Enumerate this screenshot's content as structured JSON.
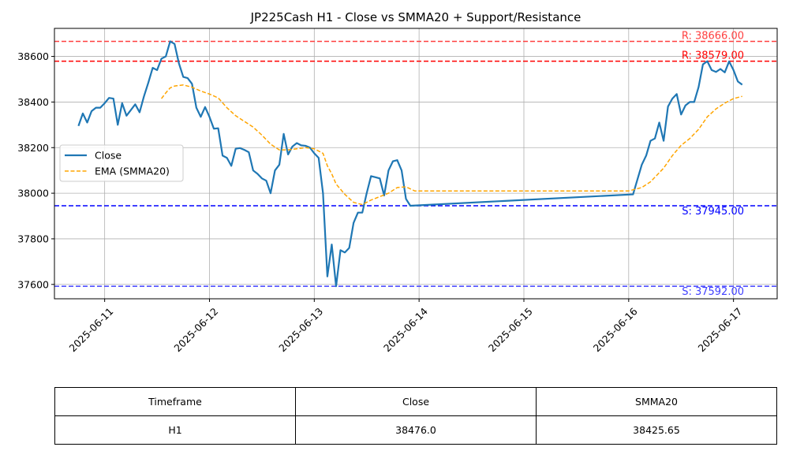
{
  "chart_data": {
    "type": "line",
    "title": "JP225Cash H1 - Close vs SMMA20 + Support/Resistance",
    "xlabel": "",
    "ylabel": "",
    "x_ticks": [
      "2025-06-11",
      "2025-06-12",
      "2025-06-13",
      "2025-06-14",
      "2025-06-15",
      "2025-06-16",
      "2025-06-17"
    ],
    "y_ticks": [
      37600,
      37800,
      38000,
      38200,
      38400,
      38600
    ],
    "xlim": [
      "2025-06-10T12:30",
      "2025-06-17T10:00"
    ],
    "ylim": [
      37537,
      38723
    ],
    "grid": true,
    "legend_position": "center-left",
    "series": [
      {
        "name": "Close",
        "color": "#1f77b4",
        "style": "solid",
        "points": [
          [
            "2025-06-10T18:00",
            38295
          ],
          [
            "2025-06-10T19:00",
            38350
          ],
          [
            "2025-06-10T20:00",
            38310
          ],
          [
            "2025-06-10T21:00",
            38360
          ],
          [
            "2025-06-10T22:00",
            38375
          ],
          [
            "2025-06-10T23:00",
            38375
          ],
          [
            "2025-06-11T00:00",
            38395
          ],
          [
            "2025-06-11T01:00",
            38418
          ],
          [
            "2025-06-11T02:00",
            38415
          ],
          [
            "2025-06-11T03:00",
            38300
          ],
          [
            "2025-06-11T04:00",
            38395
          ],
          [
            "2025-06-11T05:00",
            38340
          ],
          [
            "2025-06-11T06:00",
            38365
          ],
          [
            "2025-06-11T07:00",
            38390
          ],
          [
            "2025-06-11T08:00",
            38355
          ],
          [
            "2025-06-11T09:00",
            38425
          ],
          [
            "2025-06-11T10:00",
            38485
          ],
          [
            "2025-06-11T11:00",
            38550
          ],
          [
            "2025-06-11T12:00",
            38540
          ],
          [
            "2025-06-11T13:00",
            38590
          ],
          [
            "2025-06-11T14:00",
            38600
          ],
          [
            "2025-06-11T15:00",
            38666
          ],
          [
            "2025-06-11T16:00",
            38655
          ],
          [
            "2025-06-11T17:00",
            38570
          ],
          [
            "2025-06-11T18:00",
            38510
          ],
          [
            "2025-06-11T19:00",
            38505
          ],
          [
            "2025-06-11T20:00",
            38480
          ],
          [
            "2025-06-11T21:00",
            38375
          ],
          [
            "2025-06-11T22:00",
            38335
          ],
          [
            "2025-06-11T23:00",
            38378
          ],
          [
            "2025-06-12T00:00",
            38335
          ],
          [
            "2025-06-12T01:00",
            38283
          ],
          [
            "2025-06-12T02:00",
            38285
          ],
          [
            "2025-06-12T03:00",
            38165
          ],
          [
            "2025-06-12T04:00",
            38155
          ],
          [
            "2025-06-12T05:00",
            38120
          ],
          [
            "2025-06-12T06:00",
            38195
          ],
          [
            "2025-06-12T07:00",
            38198
          ],
          [
            "2025-06-12T08:00",
            38190
          ],
          [
            "2025-06-12T09:00",
            38180
          ],
          [
            "2025-06-12T10:00",
            38100
          ],
          [
            "2025-06-12T11:00",
            38085
          ],
          [
            "2025-06-12T12:00",
            38065
          ],
          [
            "2025-06-12T13:00",
            38055
          ],
          [
            "2025-06-12T14:00",
            38000
          ],
          [
            "2025-06-12T15:00",
            38100
          ],
          [
            "2025-06-12T16:00",
            38125
          ],
          [
            "2025-06-12T17:00",
            38260
          ],
          [
            "2025-06-12T18:00",
            38170
          ],
          [
            "2025-06-12T19:00",
            38205
          ],
          [
            "2025-06-12T20:00",
            38220
          ],
          [
            "2025-06-12T21:00",
            38210
          ],
          [
            "2025-06-12T22:00",
            38208
          ],
          [
            "2025-06-12T23:00",
            38200
          ],
          [
            "2025-06-13T00:00",
            38175
          ],
          [
            "2025-06-13T01:00",
            38155
          ],
          [
            "2025-06-13T02:00",
            38000
          ],
          [
            "2025-06-13T03:00",
            37635
          ],
          [
            "2025-06-13T04:00",
            37775
          ],
          [
            "2025-06-13T05:00",
            37592
          ],
          [
            "2025-06-13T06:00",
            37750
          ],
          [
            "2025-06-13T07:00",
            37740
          ],
          [
            "2025-06-13T08:00",
            37760
          ],
          [
            "2025-06-13T09:00",
            37870
          ],
          [
            "2025-06-13T10:00",
            37915
          ],
          [
            "2025-06-13T11:00",
            37915
          ],
          [
            "2025-06-13T12:00",
            38000
          ],
          [
            "2025-06-13T13:00",
            38075
          ],
          [
            "2025-06-13T14:00",
            38070
          ],
          [
            "2025-06-13T15:00",
            38065
          ],
          [
            "2025-06-13T16:00",
            37990
          ],
          [
            "2025-06-13T17:00",
            38100
          ],
          [
            "2025-06-13T18:00",
            38140
          ],
          [
            "2025-06-13T19:00",
            38145
          ],
          [
            "2025-06-13T20:00",
            38100
          ],
          [
            "2025-06-13T21:00",
            37975
          ],
          [
            "2025-06-13T22:00",
            37945
          ],
          [
            "2025-06-16T01:00",
            37995
          ],
          [
            "2025-06-16T02:00",
            38060
          ],
          [
            "2025-06-16T03:00",
            38125
          ],
          [
            "2025-06-16T04:00",
            38165
          ],
          [
            "2025-06-16T05:00",
            38230
          ],
          [
            "2025-06-16T06:00",
            38240
          ],
          [
            "2025-06-16T07:00",
            38310
          ],
          [
            "2025-06-16T08:00",
            38230
          ],
          [
            "2025-06-16T09:00",
            38380
          ],
          [
            "2025-06-16T10:00",
            38415
          ],
          [
            "2025-06-16T11:00",
            38435
          ],
          [
            "2025-06-16T12:00",
            38345
          ],
          [
            "2025-06-16T13:00",
            38385
          ],
          [
            "2025-06-16T14:00",
            38400
          ],
          [
            "2025-06-16T15:00",
            38400
          ],
          [
            "2025-06-16T16:00",
            38465
          ],
          [
            "2025-06-16T17:00",
            38565
          ],
          [
            "2025-06-16T18:00",
            38579
          ],
          [
            "2025-06-16T19:00",
            38540
          ],
          [
            "2025-06-16T20:00",
            38532
          ],
          [
            "2025-06-16T21:00",
            38545
          ],
          [
            "2025-06-16T22:00",
            38530
          ],
          [
            "2025-06-16T23:00",
            38578
          ],
          [
            "2025-06-17T00:00",
            38540
          ],
          [
            "2025-06-17T01:00",
            38490
          ],
          [
            "2025-06-17T02:00",
            38476
          ]
        ]
      },
      {
        "name": "EMA (SMMA20)",
        "color": "#ffa500",
        "style": "dashed",
        "points": [
          [
            "2025-06-11T13:00",
            38415
          ],
          [
            "2025-06-11T14:00",
            38440
          ],
          [
            "2025-06-11T15:00",
            38462
          ],
          [
            "2025-06-11T16:00",
            38470
          ],
          [
            "2025-06-11T18:00",
            38475
          ],
          [
            "2025-06-11T20:00",
            38465
          ],
          [
            "2025-06-11T22:00",
            38448
          ],
          [
            "2025-06-12T00:00",
            38435
          ],
          [
            "2025-06-12T02:00",
            38418
          ],
          [
            "2025-06-12T04:00",
            38375
          ],
          [
            "2025-06-12T06:00",
            38340
          ],
          [
            "2025-06-12T08:00",
            38315
          ],
          [
            "2025-06-12T10:00",
            38290
          ],
          [
            "2025-06-12T12:00",
            38255
          ],
          [
            "2025-06-12T14:00",
            38215
          ],
          [
            "2025-06-12T16:00",
            38190
          ],
          [
            "2025-06-12T18:00",
            38190
          ],
          [
            "2025-06-12T20:00",
            38195
          ],
          [
            "2025-06-12T22:00",
            38200
          ],
          [
            "2025-06-13T00:00",
            38195
          ],
          [
            "2025-06-13T02:00",
            38175
          ],
          [
            "2025-06-13T03:00",
            38120
          ],
          [
            "2025-06-13T04:00",
            38085
          ],
          [
            "2025-06-13T05:00",
            38040
          ],
          [
            "2025-06-13T07:00",
            37995
          ],
          [
            "2025-06-13T09:00",
            37960
          ],
          [
            "2025-06-13T11:00",
            37950
          ],
          [
            "2025-06-13T13:00",
            37970
          ],
          [
            "2025-06-13T15:00",
            37985
          ],
          [
            "2025-06-13T17:00",
            38000
          ],
          [
            "2025-06-13T19:00",
            38025
          ],
          [
            "2025-06-13T21:00",
            38028
          ],
          [
            "2025-06-13T23:00",
            38010
          ],
          [
            "2025-06-16T00:00",
            38010
          ],
          [
            "2025-06-16T03:00",
            38025
          ],
          [
            "2025-06-16T05:00",
            38050
          ],
          [
            "2025-06-16T08:00",
            38110
          ],
          [
            "2025-06-16T10:00",
            38165
          ],
          [
            "2025-06-16T12:00",
            38210
          ],
          [
            "2025-06-16T14:00",
            38240
          ],
          [
            "2025-06-16T16:00",
            38280
          ],
          [
            "2025-06-16T18:00",
            38335
          ],
          [
            "2025-06-16T20:00",
            38370
          ],
          [
            "2025-06-16T22:00",
            38395
          ],
          [
            "2025-06-17T00:00",
            38415
          ],
          [
            "2025-06-17T02:00",
            38425
          ]
        ]
      }
    ],
    "levels": [
      {
        "type": "resistance",
        "value": 38666,
        "color": "#ff4040",
        "label": "R: 38666.00"
      },
      {
        "type": "resistance",
        "value": 38579,
        "color": "#ff0000",
        "label": "R: 38579.00"
      },
      {
        "type": "support",
        "value": 37945,
        "color": "#0000ff",
        "label": "S: 37945.00"
      },
      {
        "type": "support",
        "value": 37592,
        "color": "#4040ff",
        "label": "S: 37592.00"
      }
    ]
  },
  "table": {
    "headers": [
      "Timeframe",
      "Close",
      "SMMA20"
    ],
    "rows": [
      [
        "H1",
        "38476.0",
        "38425.65"
      ]
    ]
  }
}
